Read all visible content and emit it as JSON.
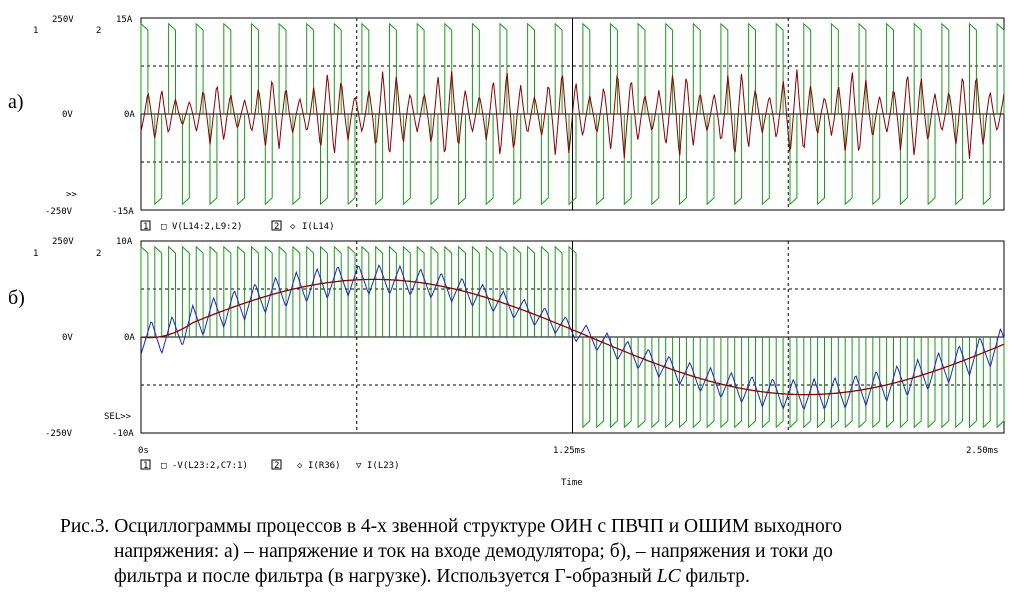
{
  "chart_data": [
    {
      "type": "line",
      "panel_label": "а)",
      "left_axis": {
        "number": "1",
        "top": "250V",
        "mid": "0V",
        "bottom": "-250V",
        "range": [
          -250,
          250
        ]
      },
      "right_axis": {
        "number": "2",
        "top": "15A",
        "mid": "0A",
        "bottom": "-15A",
        "range": [
          -15,
          15
        ]
      },
      "cursor_mark": ">>",
      "x_range_ms": [
        0,
        2.5
      ],
      "grid": "dashed at 25% and 75%, solid cursor at 1.25 ms",
      "legend": [
        {
          "num": "1",
          "marker": "□",
          "label": "V(L14:2,L9:2)",
          "color": "#1a9a1a"
        },
        {
          "num": "2",
          "marker": "◇",
          "label": "I(L14)",
          "color": "#8b0000"
        }
      ],
      "series": [
        {
          "name": "V(L14:2,L9:2)",
          "axis": 1,
          "amplitude": 235,
          "pwm_period_ms": 0.04,
          "demod_period_ms": 0.08,
          "note": "bipolar PWM square wave, ±235V"
        },
        {
          "name": "I(L14)",
          "axis": 2,
          "peak": 7,
          "note": "triangular ripple current, ~±4A rising to ~±7A"
        }
      ]
    },
    {
      "type": "line",
      "panel_label": "б)",
      "left_axis": {
        "number": "1",
        "top": "250V",
        "mid": "0V",
        "bottom": "-250V",
        "range": [
          -250,
          250
        ]
      },
      "right_axis": {
        "number": "2",
        "top": "10A",
        "mid": "0A",
        "bottom": "-10A",
        "range": [
          -10,
          10
        ]
      },
      "cursor_mark": "SEL>>",
      "x_range_ms": [
        0,
        2.5
      ],
      "x_ticks": [
        "0s",
        "1.25ms",
        "2.50ms"
      ],
      "xlabel": "Time",
      "legend": [
        {
          "num": "1",
          "marker": "□",
          "label": "-V(L23:2,C7:1)",
          "color": "#1a9a1a"
        },
        {
          "num": "2",
          "marker": "◇",
          "label": "I(R36)",
          "color": "#8b0000"
        },
        {
          "marker": "▽",
          "label": "I(L23)",
          "color": "#2222cc"
        }
      ],
      "series": [
        {
          "name": "-V(L23:2,C7:1)",
          "axis": 1,
          "amplitude": 235,
          "pwm_period_ms": 0.04,
          "note": "positive pulses 0–1.25 ms, negative pulses 1.25–2.5 ms"
        },
        {
          "name": "I(R36)",
          "axis": 2,
          "peak": 6,
          "period_ms": 2.5,
          "note": "smooth sinusoidal load current"
        },
        {
          "name": "I(L23)",
          "axis": 2,
          "peak": 6,
          "ripple": 1.8,
          "note": "sinusoid with triangular ripple"
        }
      ]
    }
  ],
  "caption": {
    "line1": "Рис.3. Осциллограммы процессов в 4-х звенной структуре ОИН с ПВЧП и ОШИМ выходного",
    "line2": "напряжения: а) – напряжение и ток на входе демодулятора; б), –  напряжения и токи до",
    "line3a": "фильтра и после фильтра (в нагрузке). Используется Г-образный ",
    "line3it": "LC",
    "line3b": " фильтр."
  },
  "colors": {
    "voltage": "#1a9a1a",
    "current_a": "#8b0000",
    "current_b": "#2222cc",
    "grid": "#000000"
  }
}
